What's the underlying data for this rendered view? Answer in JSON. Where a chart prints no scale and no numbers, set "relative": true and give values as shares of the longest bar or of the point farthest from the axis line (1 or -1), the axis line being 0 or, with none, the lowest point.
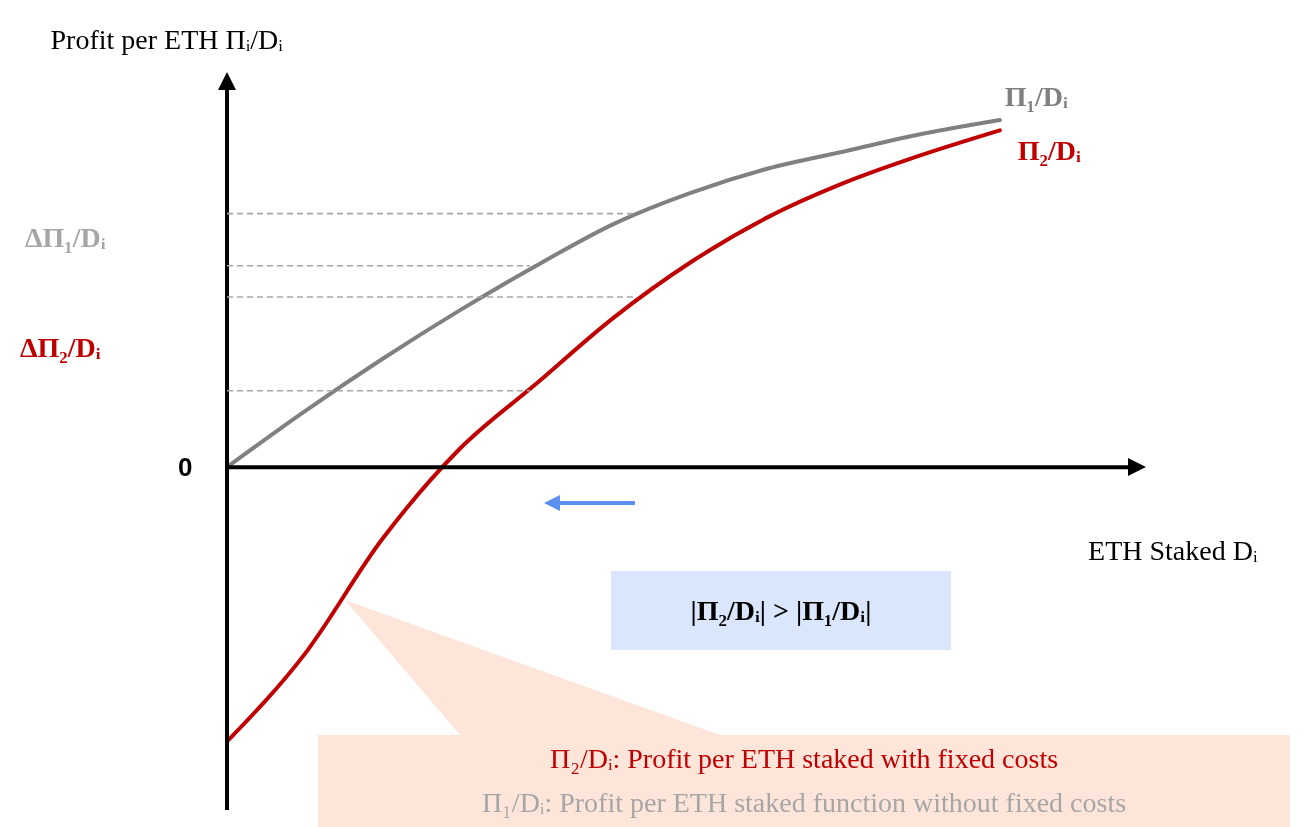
{
  "chart_data": {
    "type": "line",
    "relative": true,
    "xlabel": "ETH Staked Dᵢ",
    "ylabel": "Profit per ETH Πᵢ/Dᵢ",
    "categories": [
      null,
      null,
      null,
      null,
      null,
      null,
      null,
      null,
      null,
      null,
      null
    ],
    "series": [
      {
        "name": "Π₁/Dᵢ",
        "color": "#808080",
        "values": [
          0,
          0.16,
          0.31,
          0.45,
          0.58,
          0.7,
          0.79,
          0.86,
          0.91,
          0.96,
          1
        ]
      },
      {
        "name": "Π₂/Dᵢ",
        "color": "#c00000",
        "values": [
          -0.79,
          -0.54,
          -0.21,
          0.05,
          0.24,
          0.43,
          0.59,
          0.72,
          0.82,
          0.9,
          0.97
        ]
      }
    ],
    "ref_lines": [
      {
        "axis": "y",
        "value": 0.73,
        "color": "#a6a6a6",
        "line_style": "dashed"
      },
      {
        "axis": "y",
        "value": 0.58,
        "color": "#a6a6a6",
        "line_style": "dashed"
      },
      {
        "axis": "y",
        "value": 0.49,
        "color": "#a6a6a6",
        "line_style": "dashed"
      },
      {
        "axis": "y",
        "value": 0.22,
        "color": "#a6a6a6",
        "line_style": "dashed"
      }
    ],
    "annotations": [
      "0",
      "|Π₂/Dᵢ| > |Π₁/Dᵢ|",
      "Π₂/Dᵢ: Profit per ETH staked with fixed costs",
      "Π₁/Dᵢ: Profit per ETH staked function without fixed costs",
      "ΔΠ₁/Dᵢ",
      "ΔΠ₂/Dᵢ"
    ],
    "line_style": "solid",
    "marker": "none",
    "legend": false
  }
}
